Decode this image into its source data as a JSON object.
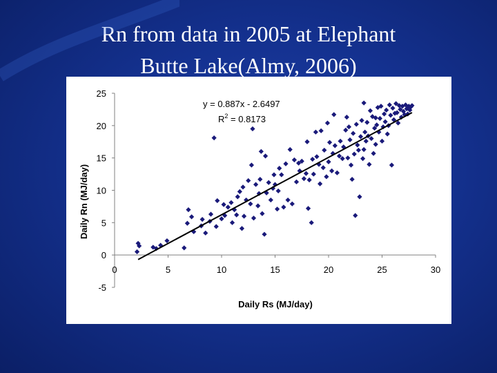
{
  "slide": {
    "title_line1": "Rn from data in 2005 at Elephant",
    "title_line2": "Butte Lake(Almy, 2006)"
  },
  "colors": {
    "background": "#14318f",
    "marker": "#1a1a7a",
    "trendline": "#000000"
  },
  "chart_data": {
    "type": "scatter",
    "title": "",
    "xlabel": "Daily Rs (MJ/day)",
    "ylabel": "Daily Rn (MJ/day)",
    "xlim": [
      0,
      30
    ],
    "ylim": [
      -5,
      25
    ],
    "xticks": [
      0,
      5,
      10,
      15,
      20,
      25,
      30
    ],
    "yticks": [
      -5,
      0,
      5,
      10,
      15,
      20,
      25
    ],
    "grid": false,
    "legend": "none",
    "trendline": {
      "slope": 0.887,
      "intercept": -2.6497,
      "x_range": [
        2.2,
        27.8
      ]
    },
    "annotations": {
      "equation": "y = 0.887x - 2.6497",
      "r2_prefix": "R",
      "r2_sup": "2",
      "r2_value": " = 0.8173"
    },
    "points": [
      [
        2.1,
        0.5
      ],
      [
        2.2,
        1.8
      ],
      [
        2.3,
        1.4
      ],
      [
        3.6,
        1.2
      ],
      [
        3.9,
        1.0
      ],
      [
        4.3,
        1.5
      ],
      [
        4.9,
        2.2
      ],
      [
        6.5,
        1.1
      ],
      [
        6.8,
        4.9
      ],
      [
        6.9,
        7.0
      ],
      [
        7.2,
        5.9
      ],
      [
        7.4,
        3.6
      ],
      [
        8.1,
        4.5
      ],
      [
        8.5,
        3.4
      ],
      [
        8.9,
        5.2
      ],
      [
        9.3,
        18.1
      ],
      [
        9.5,
        4.4
      ],
      [
        9.6,
        8.4
      ],
      [
        10.0,
        5.6
      ],
      [
        10.3,
        6.1
      ],
      [
        10.6,
        7.4
      ],
      [
        10.9,
        8.1
      ],
      [
        11.0,
        5.0
      ],
      [
        11.2,
        7.0
      ],
      [
        11.4,
        6.2
      ],
      [
        11.7,
        9.8
      ],
      [
        11.9,
        4.1
      ],
      [
        12.1,
        6.0
      ],
      [
        12.3,
        8.5
      ],
      [
        12.5,
        11.5
      ],
      [
        12.7,
        7.9
      ],
      [
        12.8,
        13.9
      ],
      [
        12.9,
        19.5
      ],
      [
        13.0,
        5.7
      ],
      [
        13.2,
        10.9
      ],
      [
        13.4,
        7.6
      ],
      [
        13.5,
        9.5
      ],
      [
        13.6,
        11.7
      ],
      [
        13.8,
        6.4
      ],
      [
        14.0,
        3.2
      ],
      [
        14.1,
        15.3
      ],
      [
        14.2,
        9.6
      ],
      [
        14.4,
        11.2
      ],
      [
        14.6,
        8.5
      ],
      [
        14.8,
        10.3
      ],
      [
        15.0,
        10.9
      ],
      [
        15.2,
        7.1
      ],
      [
        15.3,
        9.9
      ],
      [
        15.6,
        12.4
      ],
      [
        15.8,
        7.4
      ],
      [
        16.0,
        14.1
      ],
      [
        16.2,
        8.5
      ],
      [
        16.4,
        16.3
      ],
      [
        16.6,
        7.9
      ],
      [
        16.8,
        14.7
      ],
      [
        17.0,
        11.3
      ],
      [
        17.3,
        13.0
      ],
      [
        17.5,
        14.5
      ],
      [
        17.7,
        11.8
      ],
      [
        17.9,
        12.6
      ],
      [
        18.0,
        17.5
      ],
      [
        18.1,
        7.2
      ],
      [
        18.2,
        11.6
      ],
      [
        18.4,
        5.0
      ],
      [
        18.5,
        14.8
      ],
      [
        18.6,
        12.5
      ],
      [
        18.8,
        19.0
      ],
      [
        18.9,
        15.2
      ],
      [
        19.1,
        14.0
      ],
      [
        19.2,
        11.0
      ],
      [
        19.3,
        19.2
      ],
      [
        19.5,
        13.5
      ],
      [
        19.6,
        16.2
      ],
      [
        19.8,
        12.1
      ],
      [
        20.0,
        14.4
      ],
      [
        20.1,
        17.4
      ],
      [
        20.3,
        13.0
      ],
      [
        20.4,
        15.7
      ],
      [
        20.5,
        21.7
      ],
      [
        20.6,
        16.9
      ],
      [
        20.8,
        12.7
      ],
      [
        21.0,
        15.3
      ],
      [
        21.1,
        17.6
      ],
      [
        21.3,
        14.9
      ],
      [
        21.4,
        16.7
      ],
      [
        21.6,
        19.3
      ],
      [
        21.7,
        21.3
      ],
      [
        21.8,
        15.0
      ],
      [
        22.0,
        17.8
      ],
      [
        22.1,
        13.9
      ],
      [
        22.2,
        11.7
      ],
      [
        22.3,
        18.8
      ],
      [
        22.4,
        15.6
      ],
      [
        22.5,
        6.1
      ],
      [
        22.6,
        20.2
      ],
      [
        22.7,
        17.0
      ],
      [
        22.8,
        16.2
      ],
      [
        22.9,
        9.0
      ],
      [
        23.0,
        18.3
      ],
      [
        23.1,
        20.8
      ],
      [
        23.2,
        14.9
      ],
      [
        23.3,
        16.3
      ],
      [
        23.4,
        19.0
      ],
      [
        23.5,
        17.6
      ],
      [
        23.6,
        20.5
      ],
      [
        23.7,
        18.4
      ],
      [
        23.8,
        14.0
      ],
      [
        23.9,
        22.3
      ],
      [
        24.0,
        18.0
      ],
      [
        24.1,
        21.4
      ],
      [
        24.2,
        15.7
      ],
      [
        24.3,
        19.6
      ],
      [
        24.4,
        17.1
      ],
      [
        24.5,
        20.1
      ],
      [
        24.6,
        22.8
      ],
      [
        24.7,
        19.0
      ],
      [
        24.8,
        21.1
      ],
      [
        24.9,
        23.0
      ],
      [
        25.0,
        17.6
      ],
      [
        25.1,
        19.8
      ],
      [
        25.2,
        21.8
      ],
      [
        25.3,
        20.6
      ],
      [
        25.4,
        22.4
      ],
      [
        25.5,
        18.7
      ],
      [
        25.6,
        20.0
      ],
      [
        25.7,
        23.2
      ],
      [
        25.8,
        21.6
      ],
      [
        25.9,
        13.9
      ],
      [
        26.0,
        22.7
      ],
      [
        26.1,
        20.9
      ],
      [
        26.2,
        21.9
      ],
      [
        26.3,
        23.4
      ],
      [
        26.4,
        22.0
      ],
      [
        26.5,
        20.4
      ],
      [
        26.6,
        23.1
      ],
      [
        26.7,
        22.5
      ],
      [
        26.8,
        21.3
      ],
      [
        26.9,
        23.0
      ],
      [
        27.0,
        22.2
      ],
      [
        27.1,
        21.7
      ],
      [
        27.2,
        23.2
      ],
      [
        27.3,
        22.6
      ],
      [
        27.4,
        21.8
      ],
      [
        27.5,
        23.0
      ],
      [
        27.6,
        22.4
      ],
      [
        27.7,
        22.9
      ],
      [
        27.8,
        23.1
      ],
      [
        19.9,
        20.4
      ],
      [
        17.2,
        14.2
      ],
      [
        15.4,
        13.4
      ],
      [
        14.9,
        12.4
      ],
      [
        13.7,
        16.0
      ],
      [
        12.0,
        10.5
      ],
      [
        11.5,
        9.0
      ],
      [
        10.2,
        7.8
      ],
      [
        9.0,
        6.3
      ],
      [
        8.2,
        5.5
      ],
      [
        21.9,
        19.8
      ],
      [
        23.3,
        23.5
      ],
      [
        24.4,
        21.2
      ]
    ]
  }
}
